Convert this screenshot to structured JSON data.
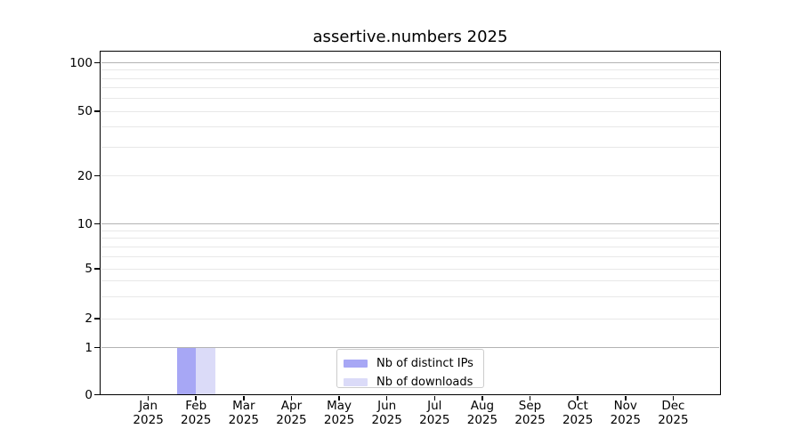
{
  "chart_data": {
    "type": "bar",
    "title": "assertive.numbers 2025",
    "categories": [
      "Jan",
      "Feb",
      "Mar",
      "Apr",
      "May",
      "Jun",
      "Jul",
      "Aug",
      "Sep",
      "Oct",
      "Nov",
      "Dec"
    ],
    "category_year": "2025",
    "series": [
      {
        "name": "Nb of distinct IPs",
        "color": "#a7a7f5",
        "values": [
          0,
          1,
          0,
          0,
          0,
          0,
          0,
          0,
          0,
          0,
          0,
          0
        ]
      },
      {
        "name": "Nb of downloads",
        "color": "#dbdbf8",
        "values": [
          0,
          1,
          0,
          0,
          0,
          0,
          0,
          0,
          0,
          0,
          0,
          0
        ]
      }
    ],
    "xlabel": "",
    "ylabel": "",
    "y_axis": {
      "scale": "symlog",
      "tick_labels": [
        0,
        1,
        2,
        5,
        10,
        20,
        50,
        100
      ],
      "minor_gridlines": [
        3,
        4,
        6,
        7,
        8,
        9,
        30,
        40,
        60,
        70,
        80,
        90
      ],
      "decade_gridlines": [
        1,
        10,
        100
      ],
      "ylim": [
        0,
        118
      ]
    },
    "grid": {
      "on": true,
      "major_color": "#b3b3b3",
      "minor_color": "#e8e8e8"
    },
    "legend": {
      "position": "lower center",
      "entries": [
        "Nb of distinct IPs",
        "Nb of downloads"
      ]
    }
  }
}
